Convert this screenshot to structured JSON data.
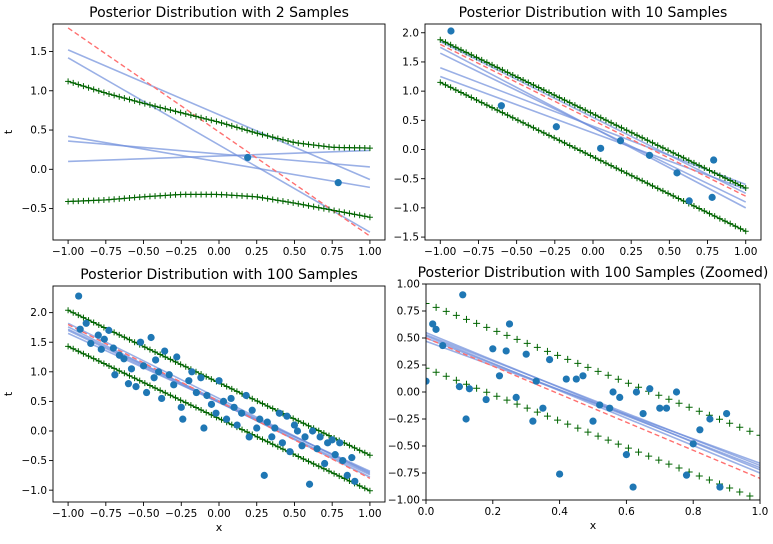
{
  "colors": {
    "samples": "#1f77b4",
    "band": "#006400",
    "posterior_lines": "#6f8fdc",
    "true_line": "#ff7070",
    "axes": "#000000",
    "background": "#ffffff"
  },
  "chart_data": [
    {
      "type": "line",
      "title": "Posterior Distribution with 2 Samples",
      "xlabel": "",
      "ylabel": "t",
      "xlim": [
        -1.1,
        1.1
      ],
      "ylim": [
        -0.9,
        1.85
      ],
      "xticks": [
        -1.0,
        -0.75,
        -0.5,
        -0.25,
        0.0,
        0.25,
        0.5,
        0.75,
        1.0
      ],
      "xtick_labels": [
        "−1.00",
        "−0.75",
        "−0.50",
        "−0.25",
        "0.00",
        "0.25",
        "0.50",
        "0.75",
        "1.00"
      ],
      "yticks": [
        -0.5,
        0.0,
        0.5,
        1.0,
        1.5
      ],
      "ytick_labels": [
        "−0.5",
        "0.0",
        "0.5",
        "1.0",
        "1.5"
      ],
      "grid": false,
      "samples": {
        "x": [
          0.19,
          0.79
        ],
        "y": [
          0.15,
          -0.17
        ]
      },
      "true_line": {
        "x": [
          -1.0,
          1.0
        ],
        "y": [
          1.8,
          -0.85
        ]
      },
      "posterior_lines": [
        {
          "x": [
            -1.0,
            1.0
          ],
          "y": [
            1.52,
            -0.13
          ]
        },
        {
          "x": [
            -1.0,
            1.0
          ],
          "y": [
            1.42,
            -0.8
          ]
        },
        {
          "x": [
            -1.0,
            1.0
          ],
          "y": [
            0.42,
            -0.23
          ]
        },
        {
          "x": [
            -1.0,
            1.0
          ],
          "y": [
            0.36,
            0.03
          ]
        },
        {
          "x": [
            -1.0,
            1.0
          ],
          "y": [
            0.1,
            0.24
          ]
        }
      ],
      "band_upper": {
        "x": [
          -1.0,
          -0.75,
          -0.5,
          -0.25,
          0.0,
          0.25,
          0.5,
          0.75,
          1.0
        ],
        "y": [
          1.12,
          0.97,
          0.84,
          0.72,
          0.6,
          0.46,
          0.34,
          0.28,
          0.27
        ]
      },
      "band_lower": {
        "x": [
          -1.0,
          -0.75,
          -0.5,
          -0.25,
          0.0,
          0.25,
          0.5,
          0.75,
          1.0
        ],
        "y": [
          -0.41,
          -0.39,
          -0.35,
          -0.32,
          -0.32,
          -0.35,
          -0.43,
          -0.52,
          -0.61
        ]
      }
    },
    {
      "type": "line",
      "title": "Posterior Distribution with 10 Samples",
      "xlabel": "",
      "ylabel": "",
      "xlim": [
        -1.1,
        1.1
      ],
      "ylim": [
        -1.55,
        2.15
      ],
      "xticks": [
        -1.0,
        -0.75,
        -0.5,
        -0.25,
        0.0,
        0.25,
        0.5,
        0.75,
        1.0
      ],
      "xtick_labels": [
        "−1.00",
        "−0.75",
        "−0.50",
        "−0.25",
        "0.00",
        "0.25",
        "0.50",
        "0.75",
        "1.00"
      ],
      "yticks": [
        -1.5,
        -1.0,
        -0.5,
        0.0,
        0.5,
        1.0,
        1.5,
        2.0
      ],
      "ytick_labels": [
        "−1.5",
        "−1.0",
        "−0.5",
        "0.0",
        "0.5",
        "1.0",
        "1.5",
        "2.0"
      ],
      "grid": false,
      "samples": {
        "x": [
          -0.93,
          -0.6,
          -0.24,
          0.05,
          0.18,
          0.37,
          0.55,
          0.63,
          0.78,
          0.79
        ],
        "y": [
          2.03,
          0.75,
          0.39,
          0.02,
          0.15,
          -0.1,
          -0.4,
          -0.88,
          -0.82,
          -0.18
        ]
      },
      "true_line": {
        "x": [
          -1.0,
          1.0
        ],
        "y": [
          1.8,
          -0.8
        ]
      },
      "posterior_lines": [
        {
          "x": [
            -1.0,
            1.0
          ],
          "y": [
            1.85,
            -0.75
          ]
        },
        {
          "x": [
            -1.0,
            1.0
          ],
          "y": [
            1.75,
            -1.0
          ]
        },
        {
          "x": [
            -1.0,
            1.0
          ],
          "y": [
            1.65,
            -0.9
          ]
        },
        {
          "x": [
            -1.0,
            1.0
          ],
          "y": [
            1.4,
            -0.6
          ]
        },
        {
          "x": [
            -1.0,
            1.0
          ],
          "y": [
            1.25,
            -0.68
          ]
        }
      ],
      "band_upper": {
        "x": [
          -1.0,
          1.0
        ],
        "y": [
          1.88,
          -0.66
        ]
      },
      "band_lower": {
        "x": [
          -1.0,
          1.0
        ],
        "y": [
          1.15,
          -1.4
        ]
      }
    },
    {
      "type": "line",
      "title": "Posterior Distribution with 100 Samples",
      "xlabel": "x",
      "ylabel": "t",
      "xlim": [
        -1.1,
        1.1
      ],
      "ylim": [
        -1.2,
        2.45
      ],
      "xticks": [
        -1.0,
        -0.75,
        -0.5,
        -0.25,
        0.0,
        0.25,
        0.5,
        0.75,
        1.0
      ],
      "xtick_labels": [
        "−1.00",
        "−0.75",
        "−0.50",
        "−0.25",
        "0.00",
        "0.25",
        "0.50",
        "0.75",
        "1.00"
      ],
      "yticks": [
        -1.0,
        -0.5,
        0.0,
        0.5,
        1.0,
        1.5,
        2.0
      ],
      "ytick_labels": [
        "−1.0",
        "−0.5",
        "0.0",
        "0.5",
        "1.0",
        "1.5",
        "2.0"
      ],
      "grid": false,
      "samples": {
        "x": [
          -0.93,
          -0.92,
          -0.88,
          -0.85,
          -0.8,
          -0.78,
          -0.76,
          -0.73,
          -0.7,
          -0.69,
          -0.66,
          -0.63,
          -0.6,
          -0.58,
          -0.55,
          -0.52,
          -0.5,
          -0.48,
          -0.45,
          -0.43,
          -0.42,
          -0.4,
          -0.38,
          -0.36,
          -0.33,
          -0.3,
          -0.28,
          -0.25,
          -0.24,
          -0.2,
          -0.18,
          -0.15,
          -0.12,
          -0.1,
          -0.08,
          -0.05,
          -0.02,
          0.0,
          0.03,
          0.05,
          0.08,
          0.1,
          0.12,
          0.15,
          0.18,
          0.2,
          0.22,
          0.25,
          0.27,
          0.3,
          0.32,
          0.35,
          0.37,
          0.4,
          0.42,
          0.45,
          0.47,
          0.5,
          0.52,
          0.55,
          0.57,
          0.6,
          0.62,
          0.65,
          0.67,
          0.7,
          0.72,
          0.75,
          0.77,
          0.8,
          0.82,
          0.85,
          0.88,
          0.9
        ],
        "y": [
          2.28,
          1.72,
          1.82,
          1.48,
          1.62,
          1.38,
          1.55,
          1.7,
          1.4,
          0.95,
          1.28,
          1.22,
          0.8,
          1.05,
          0.75,
          1.5,
          1.1,
          0.65,
          1.58,
          0.9,
          1.2,
          1.0,
          0.55,
          1.35,
          0.95,
          0.78,
          1.25,
          0.4,
          0.2,
          0.85,
          1.0,
          0.65,
          0.9,
          0.05,
          0.6,
          0.45,
          0.3,
          0.85,
          0.5,
          0.2,
          0.55,
          0.4,
          0.1,
          0.3,
          0.6,
          -0.1,
          0.35,
          0.05,
          0.2,
          -0.75,
          0.15,
          -0.1,
          0.05,
          0.3,
          -0.2,
          0.25,
          -0.35,
          0.1,
          0.0,
          -0.25,
          -0.1,
          -0.9,
          0.0,
          -0.3,
          -0.1,
          -0.55,
          -0.2,
          -0.15,
          -0.4,
          -0.2,
          -0.5,
          -0.75,
          -0.45,
          -0.85
        ]
      },
      "true_line": {
        "x": [
          -1.0,
          1.0
        ],
        "y": [
          1.8,
          -0.8
        ]
      },
      "posterior_lines": [
        {
          "x": [
            -1.0,
            1.0
          ],
          "y": [
            1.82,
            -0.72
          ]
        },
        {
          "x": [
            -1.0,
            1.0
          ],
          "y": [
            1.76,
            -0.78
          ]
        },
        {
          "x": [
            -1.0,
            1.0
          ],
          "y": [
            1.7,
            -0.74
          ]
        },
        {
          "x": [
            -1.0,
            1.0
          ],
          "y": [
            1.65,
            -0.68
          ]
        },
        {
          "x": [
            -1.0,
            1.0
          ],
          "y": [
            1.72,
            -0.7
          ]
        }
      ],
      "band_upper": {
        "x": [
          -1.0,
          1.0
        ],
        "y": [
          2.04,
          -0.41
        ]
      },
      "band_lower": {
        "x": [
          -1.0,
          1.0
        ],
        "y": [
          1.43,
          -1.01
        ]
      }
    },
    {
      "type": "line",
      "title": "Posterior Distribution with 100 Samples (Zoomed)",
      "xlabel": "x",
      "ylabel": "",
      "xlim": [
        0.0,
        1.0
      ],
      "ylim": [
        -1.0,
        1.0
      ],
      "xticks": [
        0.0,
        0.2,
        0.4,
        0.6,
        0.8,
        1.0
      ],
      "xtick_labels": [
        "0.0",
        "0.2",
        "0.4",
        "0.6",
        "0.8",
        "1.0"
      ],
      "yticks": [
        -1.0,
        -0.75,
        -0.5,
        -0.25,
        0.0,
        0.25,
        0.5,
        0.75,
        1.0
      ],
      "ytick_labels": [
        "−1.00",
        "−0.75",
        "−0.50",
        "−0.25",
        "0.00",
        "0.25",
        "0.50",
        "0.75",
        "1.00"
      ],
      "grid": false,
      "samples": {
        "x": [
          0.0,
          0.02,
          0.03,
          0.05,
          0.1,
          0.11,
          0.12,
          0.13,
          0.18,
          0.2,
          0.22,
          0.24,
          0.25,
          0.27,
          0.3,
          0.32,
          0.33,
          0.35,
          0.37,
          0.4,
          0.42,
          0.45,
          0.47,
          0.5,
          0.52,
          0.55,
          0.56,
          0.58,
          0.6,
          0.62,
          0.63,
          0.65,
          0.67,
          0.7,
          0.72,
          0.75,
          0.78,
          0.8,
          0.82,
          0.85,
          0.88,
          0.9
        ],
        "y": [
          0.1,
          0.63,
          0.58,
          0.43,
          0.05,
          0.9,
          -0.25,
          0.03,
          -0.07,
          0.4,
          0.15,
          0.38,
          0.63,
          -0.05,
          0.35,
          -0.27,
          0.1,
          -0.15,
          0.3,
          -0.76,
          0.12,
          0.12,
          0.15,
          -0.27,
          -0.12,
          -0.15,
          0.0,
          -0.05,
          -0.58,
          -0.88,
          0.0,
          -0.2,
          0.03,
          -0.15,
          -0.15,
          0.0,
          -0.77,
          -0.48,
          -0.35,
          -0.25,
          -0.88,
          -0.2
        ]
      },
      "true_line": {
        "x": [
          0.0,
          1.0
        ],
        "y": [
          0.5,
          -0.8
        ]
      },
      "posterior_lines": [
        {
          "x": [
            0.0,
            1.0
          ],
          "y": [
            0.55,
            -0.72
          ]
        },
        {
          "x": [
            0.0,
            1.0
          ],
          "y": [
            0.52,
            -0.75
          ]
        },
        {
          "x": [
            0.0,
            1.0
          ],
          "y": [
            0.5,
            -0.7
          ]
        },
        {
          "x": [
            0.0,
            1.0
          ],
          "y": [
            0.47,
            -0.66
          ]
        },
        {
          "x": [
            0.0,
            1.0
          ],
          "y": [
            0.53,
            -0.68
          ]
        }
      ],
      "band_upper": {
        "x": [
          0.0,
          1.0
        ],
        "y": [
          0.82,
          -0.4
        ]
      },
      "band_lower": {
        "x": [
          0.0,
          1.0
        ],
        "y": [
          0.22,
          -1.0
        ]
      }
    }
  ]
}
